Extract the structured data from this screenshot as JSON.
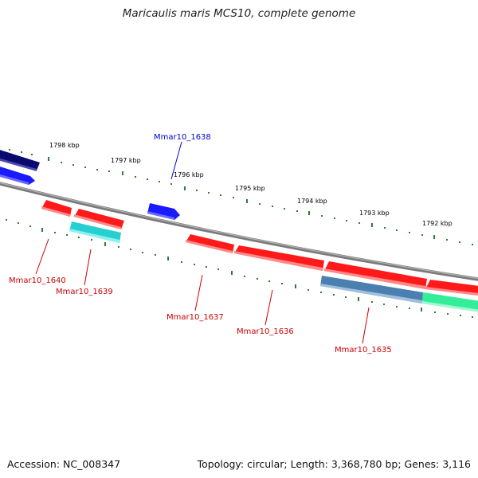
{
  "title": "Maricaulis maris MCS10, complete genome",
  "footer": {
    "accession": "Accession: NC_008347",
    "stats": "Topology: circular; Length: 3,368,780 bp; Genes: 3,116"
  },
  "colors": {
    "backbone": "#8a8a8a",
    "tick": "#2e7d32",
    "blue_label": "#0000cc",
    "red_label": "#cc0000"
  },
  "scale_labels": [
    "1798 kbp",
    "1797 kbp",
    "1796 kbp",
    "1795 kbp",
    "1794 kbp",
    "1793 kbp",
    "1792 kbp"
  ],
  "genes": [
    {
      "id": "g-left-navy",
      "strand": "outer",
      "color": "#0a0a6e",
      "label": ""
    },
    {
      "id": "g-left-blue",
      "strand": "outer",
      "color": "#1a1aff",
      "label": ""
    },
    {
      "id": "g1638",
      "strand": "outer",
      "color": "#1a1aff",
      "label": "Mmar10_1638"
    },
    {
      "id": "g1640",
      "strand": "inner",
      "color": "#ff1a1a",
      "label": "Mmar10_1640"
    },
    {
      "id": "g1639",
      "strand": "inner",
      "color": "#ff1a1a",
      "label": "Mmar10_1639"
    },
    {
      "id": "g1639b",
      "strand": "inner",
      "color": "#26d0d0",
      "label": ""
    },
    {
      "id": "g1637",
      "strand": "inner",
      "color": "#ff1a1a",
      "label": "Mmar10_1637"
    },
    {
      "id": "g1636",
      "strand": "inner",
      "color": "#ff1a1a",
      "label": "Mmar10_1636"
    },
    {
      "id": "g1635",
      "strand": "inner",
      "color": "#ff1a1a",
      "label": "Mmar10_1635"
    },
    {
      "id": "g1635b",
      "strand": "inner",
      "color": "#4a7fb0",
      "label": ""
    },
    {
      "id": "g-right-red",
      "strand": "inner",
      "color": "#ff1a1a",
      "label": ""
    },
    {
      "id": "g-right-green",
      "strand": "inner",
      "color": "#33ee99",
      "label": ""
    }
  ]
}
